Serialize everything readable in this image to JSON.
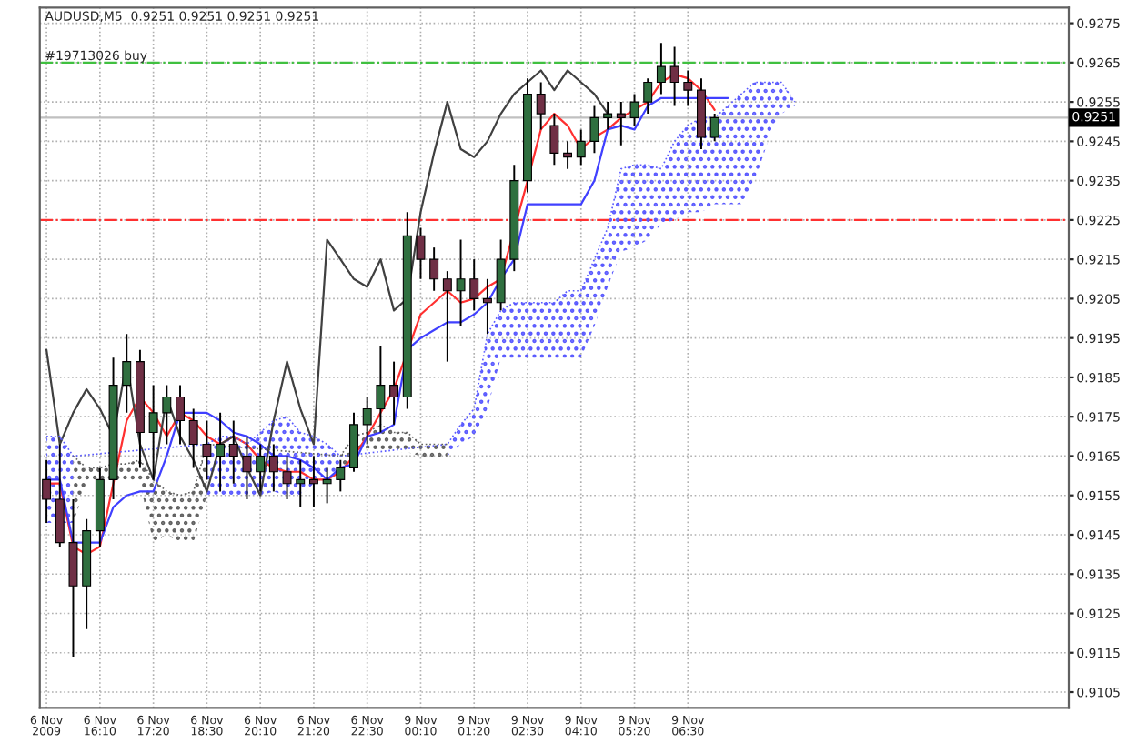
{
  "chart_data": {
    "type": "candlestick",
    "title": "AUDUSD,M5  0.9251 0.9251 0.9251 0.9251",
    "categories": [
      "6 Nov 2009",
      null,
      null,
      null,
      "6 Nov 16:10",
      null,
      null,
      null,
      "6 Nov 17:20",
      null,
      null,
      null,
      "6 Nov 18:30",
      null,
      null,
      null,
      "6 Nov 20:10",
      null,
      null,
      null,
      "6 Nov 21:20",
      null,
      null,
      null,
      "6 Nov 22:30",
      null,
      null,
      null,
      "9 Nov 00:10",
      null,
      null,
      null,
      "9 Nov 01:20",
      null,
      null,
      null,
      "9 Nov 02:30",
      null,
      null,
      null,
      "9 Nov 04:10",
      null,
      null,
      null,
      "9 Nov 05:20",
      null,
      null,
      null,
      "9 Nov 06:30",
      null,
      null,
      null,
      null,
      null,
      null,
      null,
      null,
      null,
      null,
      null,
      null,
      null,
      null,
      null,
      null,
      null,
      null,
      null,
      null,
      null,
      null,
      null,
      null,
      null,
      null,
      null,
      null
    ],
    "ohlc": [
      [
        0.9159,
        0.9164,
        0.9148,
        0.9154
      ],
      [
        0.9154,
        0.9168,
        0.9142,
        0.9143
      ],
      [
        0.9143,
        0.9154,
        0.9114,
        0.9132
      ],
      [
        0.9132,
        0.9149,
        0.9121,
        0.9146
      ],
      [
        0.9146,
        0.9162,
        0.9142,
        0.9159
      ],
      [
        0.9159,
        0.919,
        0.9154,
        0.9183
      ],
      [
        0.9183,
        0.9196,
        0.9176,
        0.9189
      ],
      [
        0.9189,
        0.9192,
        0.9162,
        0.9171
      ],
      [
        0.9171,
        0.9183,
        0.9159,
        0.9176
      ],
      [
        0.9176,
        0.9183,
        0.9168,
        0.918
      ],
      [
        0.918,
        0.9183,
        0.9168,
        0.9174
      ],
      [
        0.9174,
        0.9177,
        0.9162,
        0.9168
      ],
      [
        0.9168,
        0.9174,
        0.9159,
        0.9165
      ],
      [
        0.9165,
        0.9176,
        0.9156,
        0.9168
      ],
      [
        0.9168,
        0.9174,
        0.9158,
        0.9165
      ],
      [
        0.9165,
        0.917,
        0.9154,
        0.9161
      ],
      [
        0.9161,
        0.9168,
        0.9156,
        0.9165
      ],
      [
        0.9165,
        0.9168,
        0.9156,
        0.9161
      ],
      [
        0.9161,
        0.9165,
        0.9154,
        0.9158
      ],
      [
        0.9158,
        0.9164,
        0.9152,
        0.9159
      ],
      [
        0.9159,
        0.9165,
        0.9152,
        0.9158
      ],
      [
        0.9158,
        0.9162,
        0.9153,
        0.9159
      ],
      [
        0.9159,
        0.9164,
        0.9156,
        0.9162
      ],
      [
        0.9162,
        0.9176,
        0.9161,
        0.9173
      ],
      [
        0.9173,
        0.918,
        0.9168,
        0.9177
      ],
      [
        0.9177,
        0.9193,
        0.9171,
        0.9183
      ],
      [
        0.9183,
        0.9189,
        0.9173,
        0.918
      ],
      [
        0.918,
        0.9227,
        0.9177,
        0.9221
      ],
      [
        0.9221,
        0.9223,
        0.921,
        0.9215
      ],
      [
        0.9215,
        0.9218,
        0.9207,
        0.921
      ],
      [
        0.921,
        0.9212,
        0.9189,
        0.9207
      ],
      [
        0.9207,
        0.922,
        0.9198,
        0.921
      ],
      [
        0.921,
        0.9215,
        0.9202,
        0.9205
      ],
      [
        0.9205,
        0.921,
        0.9196,
        0.9204
      ],
      [
        0.9204,
        0.922,
        0.9202,
        0.9215
      ],
      [
        0.9215,
        0.9239,
        0.9212,
        0.9235
      ],
      [
        0.9235,
        0.9261,
        0.9232,
        0.9257
      ],
      [
        0.9257,
        0.926,
        0.9248,
        0.9252
      ],
      [
        0.9249,
        0.9252,
        0.9239,
        0.9242
      ],
      [
        0.9242,
        0.9245,
        0.9238,
        0.9241
      ],
      [
        0.9241,
        0.9248,
        0.9239,
        0.9245
      ],
      [
        0.9245,
        0.9254,
        0.9242,
        0.9251
      ],
      [
        0.9251,
        0.9255,
        0.9248,
        0.9252
      ],
      [
        0.9252,
        0.9255,
        0.9244,
        0.9251
      ],
      [
        0.9251,
        0.9257,
        0.9249,
        0.9255
      ],
      [
        0.9255,
        0.9261,
        0.9252,
        0.926
      ],
      [
        0.926,
        0.927,
        0.9257,
        0.9264
      ],
      [
        0.9264,
        0.9269,
        0.9254,
        0.926
      ],
      [
        0.926,
        0.9263,
        0.9254,
        0.9258
      ],
      [
        0.9258,
        0.9261,
        0.9243,
        0.9246
      ],
      [
        0.9246,
        0.9252,
        0.9245,
        0.9251
      ],
      null,
      null,
      null,
      null,
      null,
      null,
      null,
      null,
      null,
      null,
      null,
      null,
      null,
      null,
      null,
      null,
      null,
      null,
      null,
      null,
      null,
      null,
      null,
      null,
      null,
      null
    ],
    "colors": [
      "#6f2f45",
      "#6f2f45",
      "#6f2f45",
      "#2f6f3f",
      "#2f6f3f",
      "#2f6f3f",
      "#2f6f3f",
      "#6f2f45",
      "#2f6f3f",
      "#2f6f3f",
      "#6f2f45",
      "#6f2f45",
      "#6f2f45",
      "#2f6f3f",
      "#6f2f45",
      "#6f2f45",
      "#2f6f3f",
      "#6f2f45",
      "#6f2f45",
      "#2f6f3f",
      "#6f2f45",
      "#2f6f3f",
      "#2f6f3f",
      "#2f6f3f",
      "#2f6f3f",
      "#2f6f3f",
      "#6f2f45",
      "#2f6f3f",
      "#6f2f45",
      "#6f2f45",
      "#6f2f45",
      "#2f6f3f",
      "#6f2f45",
      "#6f2f45",
      "#2f6f3f",
      "#2f6f3f",
      "#2f6f3f",
      "#6f2f45",
      "#6f2f45",
      "#6f2f45",
      "#2f6f3f",
      "#2f6f3f",
      "#2f6f3f",
      "#6f2f45",
      "#2f6f3f",
      "#2f6f3f",
      "#2f6f3f",
      "#6f2f45",
      "#6f2f45",
      "#6f2f45",
      "#2f6f3f",
      null,
      null,
      null,
      null,
      null,
      null,
      null,
      null,
      null,
      null,
      null,
      null,
      null,
      null,
      null,
      null,
      null,
      null,
      null,
      null,
      null,
      null,
      null,
      null,
      null,
      null
    ],
    "series": [
      {
        "type": "line",
        "color": "#ff3030",
        "values": [
          0.9158,
          0.9158,
          0.9142,
          0.914,
          0.9142,
          null,
          0.9174,
          0.918,
          0.9176,
          0.917,
          0.9176,
          0.9174,
          0.917,
          0.9168,
          0.917,
          0.9168,
          0.9164,
          0.9162,
          0.9161,
          0.9161,
          0.9159,
          0.9159,
          0.9161,
          0.9165,
          0.917,
          0.9176,
          0.9182,
          null,
          0.9201,
          0.9204,
          0.9207,
          0.9204,
          0.9205,
          0.9208,
          0.921,
          null,
          0.9235,
          0.9248,
          0.9252,
          0.9249,
          0.9243,
          0.9246,
          0.9248,
          0.9251,
          0.9253,
          0.9255,
          0.926,
          0.9262,
          0.9261,
          0.9258,
          0.9253,
          null,
          null,
          null,
          null,
          null,
          null,
          null,
          null,
          null,
          null,
          null,
          null,
          null,
          null,
          null,
          null,
          null,
          null,
          null,
          null,
          null,
          null,
          null,
          null,
          null,
          null
        ]
      },
      {
        "type": "line",
        "color": "#4040ff",
        "values": [
          0.9159,
          0.9159,
          0.9143,
          0.9143,
          0.9143,
          0.9152,
          0.9155,
          0.9156,
          0.9156,
          0.9165,
          0.9176,
          0.9176,
          0.9176,
          0.9174,
          0.9171,
          0.917,
          0.9168,
          0.9165,
          0.9165,
          0.9164,
          0.9162,
          0.9159,
          0.9162,
          0.9163,
          0.917,
          0.9171,
          0.9173,
          0.9192,
          0.9195,
          0.9197,
          0.9199,
          0.9199,
          0.9201,
          0.9204,
          0.921,
          0.9215,
          0.9229,
          0.9229,
          0.9229,
          0.9229,
          0.9229,
          0.9235,
          0.9248,
          0.9249,
          0.9248,
          0.9254,
          0.9256,
          0.9256,
          0.9256,
          0.9256,
          0.9256,
          0.9256,
          null,
          null,
          null,
          null,
          null,
          null,
          null,
          null,
          null,
          null,
          null,
          null,
          null,
          null,
          null,
          null,
          null,
          null,
          null,
          null,
          null,
          null,
          null,
          null,
          null
        ]
      },
      {
        "type": "line",
        "color": "#404040",
        "values": [
          0.9192,
          0.9168,
          0.9176,
          0.9182,
          0.9177,
          0.917,
          0.9189,
          0.9168,
          0.9159,
          0.918,
          0.917,
          0.9164,
          0.9156,
          0.9168,
          0.917,
          0.9162,
          0.9155,
          0.9174,
          0.9189,
          0.9177,
          0.9168,
          0.922,
          0.9215,
          0.921,
          0.9208,
          0.9215,
          0.9202,
          0.9205,
          0.9227,
          0.9242,
          0.9255,
          0.9243,
          0.9241,
          0.9245,
          0.9252,
          0.9257,
          0.926,
          0.9263,
          0.9258,
          0.9263,
          0.926,
          0.9257,
          0.9252,
          null,
          null,
          null,
          null,
          null,
          null,
          null,
          null,
          null,
          null,
          null,
          null,
          null,
          null,
          null,
          null,
          null,
          null,
          null,
          null,
          null,
          null,
          null,
          null,
          null,
          null,
          null,
          null,
          null,
          null,
          null,
          null,
          null,
          null
        ]
      },
      {
        "type": "line",
        "color": "#5a5aff",
        "line_style": "dotted",
        "upper": [
          0.917,
          0.917,
          0.9165,
          null,
          null,
          null,
          null,
          null,
          null,
          null,
          null,
          null,
          0.9168,
          0.917,
          0.917,
          0.9168,
          0.9171,
          0.9174,
          0.9175,
          0.9171,
          0.917,
          0.9168,
          0.9165,
          null,
          null,
          null,
          null,
          null,
          null,
          null,
          0.9168,
          0.9173,
          0.9177,
          0.9196,
          0.9202,
          0.9204,
          0.9204,
          0.9204,
          0.9204,
          0.9207,
          0.9207,
          0.9215,
          0.9223,
          0.9238,
          0.9239,
          0.9239,
          0.9238,
          0.9245,
          0.9249,
          0.9251,
          0.9251,
          0.9254,
          0.9257,
          0.926,
          0.926,
          0.926,
          0.9255,
          null,
          null,
          null,
          null,
          null,
          null,
          null,
          null,
          null,
          null,
          null,
          null,
          null,
          null,
          null,
          null,
          null,
          null,
          null,
          null
        ],
        "lower": [
          0.9148,
          0.9148,
          0.9148,
          null,
          null,
          null,
          null,
          null,
          null,
          null,
          null,
          null,
          0.9155,
          0.9155,
          0.9155,
          0.9155,
          0.9155,
          0.9156,
          0.9155,
          0.9155,
          0.9158,
          0.9161,
          0.9161,
          null,
          null,
          null,
          null,
          null,
          null,
          null,
          0.9165,
          0.9168,
          0.917,
          0.9177,
          0.919,
          0.919,
          0.919,
          0.919,
          0.919,
          0.919,
          0.919,
          0.9198,
          0.9208,
          0.9217,
          0.9218,
          0.922,
          0.9224,
          0.9225,
          0.9227,
          0.9227,
          0.9229,
          0.9229,
          0.9229,
          0.9235,
          0.9245,
          0.9252,
          0.9254,
          null,
          null,
          null,
          null,
          null,
          null,
          null,
          null,
          null,
          null,
          null,
          null,
          null,
          null,
          null,
          null,
          null,
          null,
          null,
          null
        ],
        "values": [
          0.917,
          0.917,
          0.9165,
          null,
          null,
          null,
          null,
          null,
          null,
          null,
          null,
          null,
          0.9168,
          0.917,
          0.917,
          0.9168,
          0.9171,
          0.9174,
          0.9175,
          0.9171,
          0.917,
          0.9168,
          0.9165,
          null,
          null,
          null,
          null,
          null,
          null,
          null,
          0.9168,
          0.9173,
          0.9177,
          0.9196,
          0.9202,
          0.9204,
          0.9204,
          0.9204,
          0.9204,
          0.9207,
          0.9207,
          0.9215,
          0.9223,
          0.9238,
          0.9239,
          0.9239,
          0.9238,
          0.9245,
          0.9249,
          0.9251,
          0.9251,
          0.9254,
          0.9257,
          0.926,
          0.926,
          0.926,
          0.9255,
          null,
          null,
          null,
          null,
          null,
          null,
          null,
          null,
          null,
          null,
          null,
          null,
          null,
          null,
          null,
          null,
          null,
          null,
          null,
          null
        ]
      },
      {
        "type": "line",
        "color": "#606060",
        "line_style": "dotted",
        "upper": [
          null,
          null,
          0.9165,
          0.9162,
          0.9162,
          0.9163,
          0.9163,
          0.9164,
          0.9159,
          0.9156,
          0.9155,
          0.9156,
          0.9168,
          null,
          null,
          null,
          null,
          null,
          null,
          null,
          null,
          null,
          0.9165,
          0.917,
          0.9171,
          0.9173,
          0.9171,
          0.9171,
          0.9168,
          0.9168,
          0.9168,
          null,
          null,
          null,
          null,
          null,
          null,
          null,
          null,
          null,
          null,
          null,
          null,
          null,
          null,
          null,
          null,
          null,
          null,
          null,
          null,
          null,
          null,
          null,
          null,
          null,
          null,
          null,
          null,
          null,
          null,
          null,
          null,
          null,
          null,
          null,
          null,
          null,
          null,
          null,
          null,
          null,
          null,
          null,
          null,
          null,
          null
        ],
        "lower": [
          null,
          null,
          0.9148,
          0.9158,
          0.9159,
          0.9159,
          0.9159,
          0.9158,
          0.9143,
          0.9145,
          0.9143,
          0.9143,
          0.9155,
          null,
          null,
          null,
          null,
          null,
          null,
          null,
          null,
          null,
          0.9161,
          0.9164,
          0.9167,
          0.9166,
          0.9166,
          0.9166,
          0.9165,
          0.9164,
          0.9165,
          null,
          null,
          null,
          null,
          null,
          null,
          null,
          null,
          null,
          null,
          null,
          null,
          null,
          null,
          null,
          null,
          null,
          null,
          null,
          null,
          null,
          null,
          null,
          null,
          null,
          null,
          null,
          null,
          null,
          null,
          null,
          null,
          null,
          null,
          null,
          null,
          null,
          null,
          null,
          null,
          null,
          null,
          null,
          null,
          null,
          null
        ],
        "values": [
          null,
          null,
          0.9165,
          0.9162,
          0.9162,
          0.9163,
          0.9163,
          0.9164,
          0.9159,
          0.9156,
          0.9155,
          0.9156,
          0.9168,
          null,
          null,
          null,
          null,
          null,
          null,
          null,
          null,
          null,
          0.9165,
          0.917,
          0.9171,
          0.9173,
          0.9171,
          0.9171,
          0.9168,
          0.9168,
          0.9168,
          null,
          null,
          null,
          null,
          null,
          null,
          null,
          null,
          null,
          null,
          null,
          null,
          null,
          null,
          null,
          null,
          null,
          null,
          null,
          null,
          null,
          null,
          null,
          null,
          null,
          null,
          null,
          null,
          null,
          null,
          null,
          null,
          null,
          null,
          null,
          null,
          null,
          null,
          null,
          null,
          null,
          null,
          null,
          null,
          null,
          null
        ]
      }
    ],
    "ylim": [
      0.9101,
      0.9279
    ],
    "yticks": [
      0.9105,
      0.9115,
      0.9125,
      0.9135,
      0.9145,
      0.9155,
      0.9165,
      0.9175,
      0.9185,
      0.9195,
      0.9205,
      0.9215,
      0.9225,
      0.9235,
      0.9245,
      0.9255,
      0.9265,
      0.9275
    ],
    "ref_lines": [
      {
        "axis": "y",
        "value": 0.9265,
        "label": "#19713026 buy",
        "color": "#40c040",
        "line_style": "dashdot"
      },
      {
        "axis": "y",
        "value": 0.9225,
        "color": "#ff3030",
        "line_style": "dashdot"
      },
      {
        "axis": "y",
        "value": 0.9251,
        "label": "0.9251",
        "color": "#c0c0c0",
        "line_style": "solid"
      }
    ],
    "grid": true,
    "legend": false
  }
}
